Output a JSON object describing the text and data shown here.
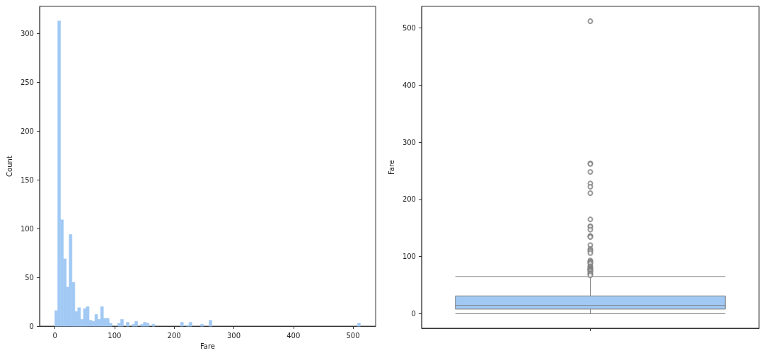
{
  "chart_data": [
    {
      "type": "histogram",
      "xlabel": "Fare",
      "ylabel": "Count",
      "color": "#a1c9f4",
      "bins": [
        0,
        4.79,
        9.58,
        14.36,
        19.15,
        23.94,
        28.73,
        33.52,
        38.31,
        43.09,
        47.88,
        52.67,
        57.46,
        62.25,
        67.03,
        71.82,
        76.61,
        81.4,
        86.19,
        90.97,
        95.76,
        100.55,
        105.34,
        110.13,
        114.92,
        119.7,
        124.49,
        129.28,
        134.07,
        138.86,
        143.64,
        148.43,
        153.22,
        158.01,
        162.8,
        167.58,
        172.37,
        177.16,
        181.95,
        186.74,
        191.53,
        196.31,
        201.1,
        205.89,
        210.68,
        215.47,
        220.25,
        225.04,
        229.83,
        234.62,
        239.41,
        244.19,
        248.98,
        253.77,
        258.56,
        263.35,
        268.13,
        272.92,
        277.71,
        282.5,
        287.29,
        292.08,
        296.86,
        301.65,
        306.44,
        311.23,
        316.02,
        320.8,
        325.59,
        330.38,
        335.17,
        339.96,
        344.74,
        349.53,
        354.32,
        359.11,
        363.9,
        368.69,
        373.47,
        378.26,
        383.05,
        387.84,
        392.63,
        397.41,
        402.2,
        406.99,
        411.78,
        416.57,
        421.35,
        426.14,
        430.93,
        435.72,
        440.51,
        445.3,
        450.08,
        454.87,
        459.66,
        464.45,
        469.24,
        474.02,
        478.81,
        483.6,
        488.39,
        493.18,
        497.96,
        502.75,
        507.54,
        512.33
      ],
      "values": [
        16,
        313,
        109,
        69,
        40,
        94,
        45,
        15,
        19,
        7,
        18,
        20,
        6,
        5,
        12,
        7,
        20,
        8,
        8,
        3,
        0,
        0,
        3,
        7,
        0,
        4,
        0,
        2,
        5,
        0,
        2,
        4,
        3,
        0,
        2,
        0,
        0,
        0,
        0,
        0,
        0,
        0,
        0,
        0,
        4,
        0,
        1,
        4,
        0,
        0,
        0,
        2,
        0,
        0,
        6,
        0,
        0,
        0,
        0,
        0,
        0,
        0,
        0,
        0,
        0,
        0,
        0,
        0,
        0,
        0,
        0,
        0,
        0,
        0,
        0,
        0,
        0,
        0,
        0,
        0,
        0,
        0,
        0,
        0,
        0,
        0,
        0,
        0,
        0,
        0,
        0,
        0,
        0,
        0,
        0,
        0,
        0,
        0,
        0,
        0,
        0,
        0,
        0,
        0,
        0,
        0,
        3
      ],
      "xlim": [
        -25.6,
        537.9
      ],
      "ylim": [
        0,
        328
      ],
      "xticks": [
        0,
        100,
        200,
        300,
        400,
        500
      ],
      "yticks": [
        0,
        50,
        100,
        150,
        200,
        250,
        300
      ]
    },
    {
      "type": "box",
      "ylabel": "Fare",
      "color": "#a1c9f4",
      "categories": [
        null
      ],
      "boxes": [
        {
          "low": 0,
          "q1": 7.9,
          "median": 14.5,
          "q3": 31,
          "high": 65,
          "outliers": [
            512,
            263,
            262,
            248,
            228,
            222,
            211,
            165,
            153,
            152,
            147,
            136,
            135,
            134,
            120,
            113,
            111,
            109,
            106,
            93,
            91,
            90,
            89,
            87,
            83,
            82,
            80,
            79,
            78,
            77,
            76,
            75,
            74,
            71,
            70,
            69,
            67
          ]
        }
      ],
      "ylim": [
        -25.6,
        537.9
      ],
      "yticks": [
        0,
        100,
        200,
        300,
        400,
        500
      ]
    }
  ]
}
